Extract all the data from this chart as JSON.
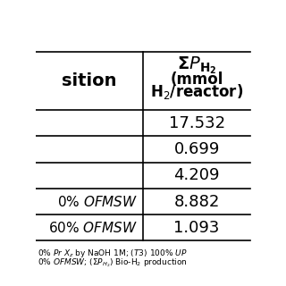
{
  "col1_header": "sition",
  "rows": [
    [
      "",
      "17.532"
    ],
    [
      "",
      "0.699"
    ],
    [
      "",
      "4.209"
    ],
    [
      "0% OFMSW",
      "8.882"
    ],
    [
      "60% OFMSW",
      "1.093"
    ]
  ],
  "bg_color": "#ffffff",
  "line_color": "#000000",
  "text_color": "#000000"
}
